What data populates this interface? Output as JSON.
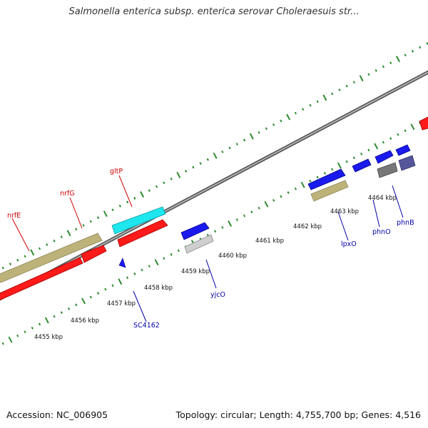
{
  "title": "Salmonella enterica subsp. enterica serovar Choleraesuis str...",
  "footer": {
    "accession": "Accession: NC_006905",
    "summary": "Topology: circular; Length: 4,755,700 bp; Genes: 4,516"
  },
  "scale_labels": [
    "4455 kbp",
    "4456 kbp",
    "4457 kbp",
    "4458 kbp",
    "4459 kbp",
    "4460 kbp",
    "4461 kbp",
    "4462 kbp",
    "4463 kbp",
    "4464 kbp"
  ],
  "gene_labels": {
    "nrfE": "nrfE",
    "nrfG": "nrfG",
    "gltP": "gltP",
    "SC4162": "SC4162",
    "yjcO": "yjcO",
    "lpxO": "lpxO",
    "phnO": "phnO",
    "phnB": "phnB"
  },
  "colors": {
    "backbone": "#888888",
    "ticks": "#2e8b2e",
    "red_label": "#cc0000",
    "blue_label": "#0000aa",
    "gene_red": "#ff1a1a",
    "gene_blue": "#1a1aee",
    "gene_cyan": "#1ee6ee",
    "gene_olive": "#bdb37a",
    "gene_grey": "#cfcfcf",
    "gene_darkgrey": "#777777",
    "gene_slate": "#55559a"
  }
}
